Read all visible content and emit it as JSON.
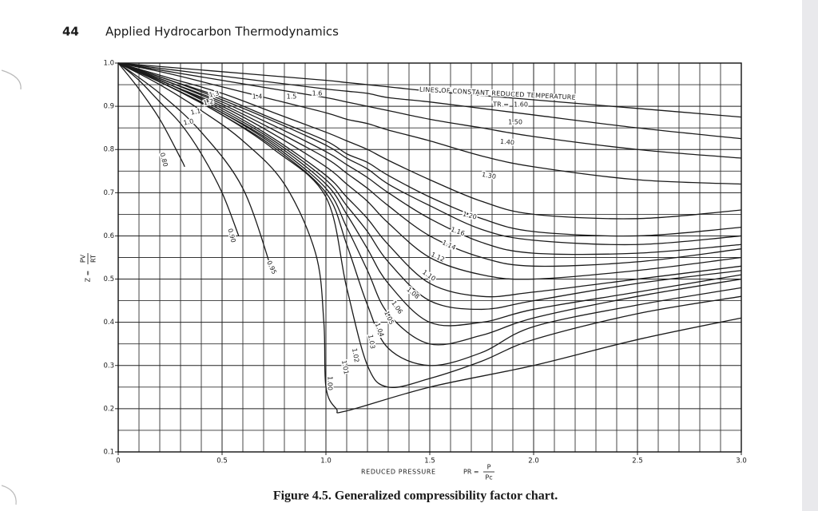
{
  "header": {
    "page_number": "44",
    "running_title": "Applied Hydrocarbon Thermodynamics"
  },
  "caption": "Figure 4.5. Generalized compressibility factor chart.",
  "chart_data": {
    "type": "line",
    "xlim": [
      0,
      3
    ],
    "ylim": [
      0.1,
      1
    ],
    "xticks": [
      0,
      0.5,
      {
        "value": 1,
        "label": "1.0"
      },
      1.5,
      {
        "value": 2,
        "label": "2.0"
      },
      2.5,
      {
        "value": 3,
        "label": "3.0"
      }
    ],
    "yticks": [
      0.1,
      0.2,
      0.3,
      0.4,
      0.5,
      0.6,
      0.7,
      0.8,
      0.9,
      {
        "value": 1,
        "label": "1.0"
      }
    ],
    "grid": true,
    "color": "#1a1a1a",
    "x_label": {
      "text": "REDUCED PRESSURE",
      "lhs": "PR =",
      "numerator": "P",
      "denominator": "Pc"
    },
    "y_label": {
      "lhs": "Z =",
      "numerator": "PV",
      "denominator": "RT"
    },
    "annotation": "LINES OF CONSTANT REDUCED TEMPERATURE",
    "tr_prefix": "TR =",
    "start_labels": [
      "1.3",
      "1.2",
      "1.1",
      "1.0",
      "1.4",
      "1.5",
      "1.6"
    ],
    "series": [
      {
        "name": "0.80",
        "x": [
          0,
          0.1,
          0.2,
          0.3,
          0.32
        ],
        "values": [
          1,
          0.94,
          0.87,
          0.78,
          0.76
        ]
      },
      {
        "name": "0.90",
        "x": [
          0,
          0.1,
          0.2,
          0.3,
          0.4,
          0.5,
          0.58
        ],
        "values": [
          1,
          0.96,
          0.91,
          0.86,
          0.79,
          0.7,
          0.6
        ]
      },
      {
        "name": "0.95",
        "x": [
          0,
          0.2,
          0.4,
          0.6,
          0.74
        ],
        "values": [
          1,
          0.93,
          0.84,
          0.71,
          0.52
        ]
      },
      {
        "name": "1.00",
        "x": [
          0,
          0.2,
          0.4,
          0.6,
          0.8,
          0.95,
          0.99,
          1.0,
          1.05,
          1.1,
          1.5,
          2.0,
          2.5,
          3.0
        ],
        "values": [
          1,
          0.95,
          0.89,
          0.82,
          0.72,
          0.56,
          0.4,
          0.25,
          0.2,
          0.195,
          0.25,
          0.3,
          0.36,
          0.41
        ]
      },
      {
        "name": "1.01",
        "x": [
          0,
          0.25,
          0.5,
          0.75,
          1.0,
          1.1,
          1.2,
          1.3,
          1.5,
          1.75,
          2.0,
          2.5,
          3.0
        ],
        "values": [
          1,
          0.945,
          0.88,
          0.8,
          0.69,
          0.48,
          0.3,
          0.25,
          0.27,
          0.31,
          0.36,
          0.42,
          0.46
        ]
      },
      {
        "name": "1.02",
        "x": [
          0,
          0.25,
          0.5,
          0.75,
          1.0,
          1.1,
          1.2,
          1.3,
          1.5,
          1.75,
          2.0,
          2.5,
          3.0
        ],
        "values": [
          1,
          0.945,
          0.88,
          0.805,
          0.7,
          0.58,
          0.44,
          0.34,
          0.3,
          0.33,
          0.39,
          0.44,
          0.48
        ]
      },
      {
        "name": "1.03",
        "x": [
          0,
          0.25,
          0.5,
          0.75,
          1.0,
          1.1,
          1.2,
          1.3,
          1.5,
          1.75,
          2.0,
          2.5,
          3.0
        ],
        "values": [
          1,
          0.945,
          0.885,
          0.81,
          0.71,
          0.62,
          0.52,
          0.42,
          0.35,
          0.37,
          0.41,
          0.46,
          0.5
        ]
      },
      {
        "name": "1.04",
        "x": [
          0,
          0.25,
          0.5,
          0.75,
          1.0,
          1.1,
          1.2,
          1.3,
          1.5,
          1.75,
          2.0,
          2.5,
          3.0
        ],
        "values": [
          1,
          0.945,
          0.885,
          0.815,
          0.72,
          0.65,
          0.57,
          0.49,
          0.4,
          0.4,
          0.43,
          0.47,
          0.51
        ]
      },
      {
        "name": "1.05",
        "x": [
          0,
          0.25,
          0.5,
          0.75,
          1.0,
          1.1,
          1.2,
          1.3,
          1.5,
          1.75,
          2.0,
          2.5,
          3.0
        ],
        "values": [
          1,
          0.95,
          0.89,
          0.82,
          0.73,
          0.67,
          0.61,
          0.54,
          0.45,
          0.43,
          0.45,
          0.49,
          0.52
        ]
      },
      {
        "name": "1.06",
        "x": [
          0,
          0.25,
          0.5,
          0.75,
          1.0,
          1.1,
          1.2,
          1.3,
          1.5,
          1.75,
          2.0,
          2.5,
          3.0
        ],
        "values": [
          1,
          0.95,
          0.895,
          0.825,
          0.74,
          0.69,
          0.64,
          0.58,
          0.49,
          0.46,
          0.47,
          0.5,
          0.53
        ]
      },
      {
        "name": "1.08",
        "x": [
          0,
          0.25,
          0.5,
          0.75,
          1.0,
          1.1,
          1.2,
          1.3,
          1.5,
          1.75,
          2.0,
          2.5,
          3.0
        ],
        "values": [
          1,
          0.95,
          0.9,
          0.835,
          0.76,
          0.72,
          0.68,
          0.63,
          0.55,
          0.51,
          0.5,
          0.52,
          0.55
        ]
      },
      {
        "name": "1.10",
        "x": [
          0,
          0.25,
          0.5,
          0.75,
          1.0,
          1.1,
          1.2,
          1.3,
          1.5,
          1.75,
          2.0,
          2.5,
          3.0
        ],
        "values": [
          1,
          0.955,
          0.905,
          0.845,
          0.78,
          0.745,
          0.71,
          0.67,
          0.6,
          0.55,
          0.53,
          0.54,
          0.57
        ]
      },
      {
        "name": "1.12",
        "x": [
          0,
          0.25,
          0.5,
          0.75,
          1.0,
          1.1,
          1.2,
          1.3,
          1.5,
          1.75,
          2.0,
          2.5,
          3.0
        ],
        "values": [
          1,
          0.955,
          0.91,
          0.855,
          0.795,
          0.765,
          0.735,
          0.7,
          0.64,
          0.585,
          0.56,
          0.56,
          0.58
        ]
      },
      {
        "name": "1.14",
        "x": [
          0,
          0.25,
          0.5,
          0.75,
          1.0,
          1.1,
          1.2,
          1.3,
          1.5,
          1.75,
          2.0,
          2.5,
          3.0
        ],
        "values": [
          1,
          0.96,
          0.915,
          0.865,
          0.81,
          0.78,
          0.755,
          0.72,
          0.67,
          0.615,
          0.59,
          0.58,
          0.6
        ]
      },
      {
        "name": "1.16",
        "x": [
          0,
          0.25,
          0.5,
          0.75,
          1.0,
          1.1,
          1.2,
          1.3,
          1.5,
          1.75,
          2.0,
          2.5,
          3.0
        ],
        "values": [
          1,
          0.96,
          0.92,
          0.87,
          0.82,
          0.79,
          0.77,
          0.74,
          0.69,
          0.64,
          0.61,
          0.6,
          0.62
        ]
      },
      {
        "name": "1.20",
        "x": [
          0,
          0.25,
          0.5,
          0.75,
          1.0,
          1.1,
          1.2,
          1.3,
          1.5,
          1.75,
          2.0,
          2.5,
          3.0
        ],
        "values": [
          1,
          0.965,
          0.93,
          0.885,
          0.84,
          0.82,
          0.8,
          0.775,
          0.73,
          0.68,
          0.65,
          0.64,
          0.66
        ]
      },
      {
        "name": "1.30",
        "x": [
          0,
          0.25,
          0.5,
          0.75,
          1.0,
          1.1,
          1.2,
          1.3,
          1.5,
          1.75,
          2.0,
          2.5,
          3.0
        ],
        "values": [
          1,
          0.975,
          0.945,
          0.915,
          0.885,
          0.87,
          0.86,
          0.845,
          0.82,
          0.785,
          0.76,
          0.73,
          0.72
        ]
      },
      {
        "name": "1.40",
        "x": [
          0,
          0.25,
          0.5,
          0.75,
          1.0,
          1.1,
          1.2,
          1.3,
          1.5,
          1.75,
          2.0,
          2.5,
          3.0
        ],
        "values": [
          1,
          0.98,
          0.96,
          0.94,
          0.92,
          0.91,
          0.9,
          0.89,
          0.87,
          0.85,
          0.83,
          0.8,
          0.78
        ]
      },
      {
        "name": "1.50",
        "x": [
          0,
          0.25,
          0.5,
          0.75,
          1.0,
          1.1,
          1.2,
          1.3,
          1.5,
          1.75,
          2.0,
          2.5,
          3.0
        ],
        "values": [
          1,
          0.985,
          0.97,
          0.955,
          0.94,
          0.935,
          0.93,
          0.92,
          0.91,
          0.895,
          0.88,
          0.85,
          0.825
        ]
      },
      {
        "name": "1.60",
        "x": [
          0,
          0.25,
          0.5,
          0.75,
          1.0,
          1.1,
          1.2,
          1.3,
          1.5,
          1.75,
          2.0,
          2.5,
          3.0
        ],
        "values": [
          1,
          0.99,
          0.98,
          0.97,
          0.96,
          0.955,
          0.95,
          0.945,
          0.935,
          0.925,
          0.915,
          0.895,
          0.875
        ]
      }
    ]
  }
}
